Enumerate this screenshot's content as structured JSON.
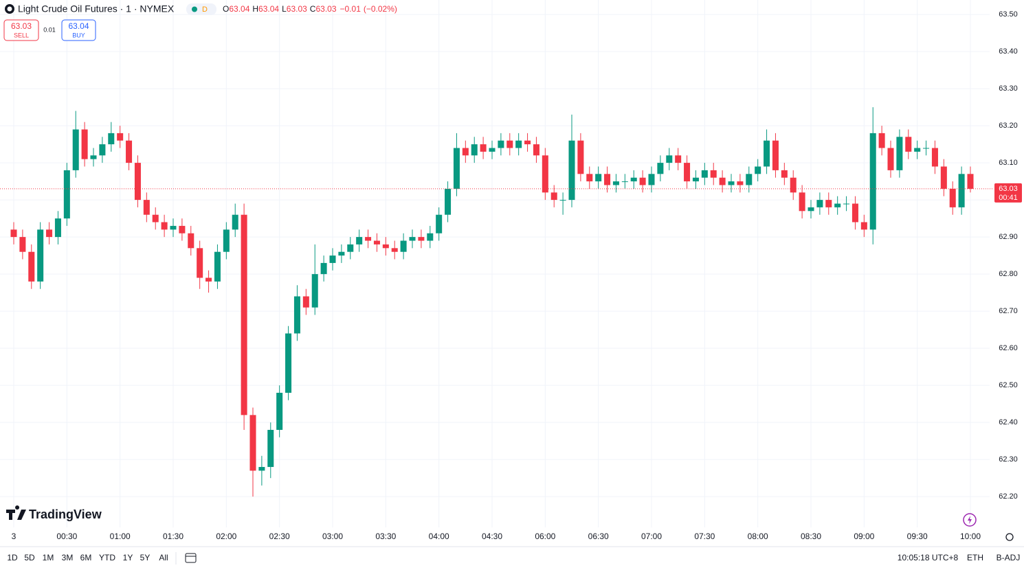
{
  "chart_data": {
    "type": "candlestick",
    "title": "Light Crude Oil Futures · 1 · NYMEX",
    "interval_badge": "D",
    "ohlc_labels": [
      "O",
      "H",
      "L",
      "C"
    ],
    "ohlc_legend": {
      "open": 63.04,
      "high": 63.04,
      "low": 63.03,
      "close": 63.03,
      "change": "−0.01",
      "change_pct": "(−0.02%)"
    },
    "sell": {
      "price": 63.03,
      "label": "SELL"
    },
    "spread": 0.01,
    "buy": {
      "price": 63.04,
      "label": "BUY"
    },
    "last_price": 63.03,
    "countdown": "00:41",
    "logo": "TradingView",
    "up_color": "#089981",
    "down_color": "#f23645",
    "grid": true,
    "categories": [
      "3",
      null,
      null,
      null,
      null,
      null,
      "00:30",
      null,
      null,
      null,
      null,
      null,
      "01:00",
      null,
      null,
      null,
      null,
      null,
      "01:30",
      null,
      null,
      null,
      null,
      null,
      "02:00",
      null,
      null,
      null,
      null,
      null,
      "02:30",
      null,
      null,
      null,
      null,
      null,
      "03:00",
      null,
      null,
      null,
      null,
      null,
      "03:30",
      null,
      null,
      null,
      null,
      null,
      "04:00",
      null,
      null,
      null,
      null,
      null,
      "04:30",
      null,
      null,
      null,
      null,
      null,
      "06:00",
      null,
      null,
      null,
      null,
      null,
      "06:30",
      null,
      null,
      null,
      null,
      null,
      "07:00",
      null,
      null,
      null,
      null,
      null,
      "07:30",
      null,
      null,
      null,
      null,
      null,
      "08:00",
      null,
      null,
      null,
      null,
      null,
      "08:30",
      null,
      null,
      null,
      null,
      null,
      "09:00",
      null,
      null,
      null,
      null,
      null,
      "09:30",
      null,
      null,
      null,
      null,
      null,
      "10:00"
    ],
    "open": [
      62.92,
      62.9,
      62.86,
      62.78,
      62.92,
      62.9,
      62.95,
      63.08,
      63.19,
      63.11,
      63.12,
      63.15,
      63.18,
      63.16,
      63.1,
      63.0,
      62.96,
      62.94,
      62.92,
      62.93,
      62.91,
      62.87,
      62.79,
      62.78,
      62.86,
      62.92,
      62.96,
      62.42,
      62.27,
      62.28,
      62.38,
      62.48,
      62.64,
      62.74,
      62.71,
      62.8,
      62.83,
      62.85,
      62.86,
      62.88,
      62.9,
      62.89,
      62.88,
      62.87,
      62.86,
      62.89,
      62.9,
      62.89,
      62.91,
      62.96,
      63.03,
      63.14,
      63.12,
      63.15,
      63.13,
      63.14,
      63.16,
      63.14,
      63.16,
      63.15,
      63.12,
      63.02,
      63.0,
      63.0,
      63.16,
      63.07,
      63.05,
      63.07,
      63.04,
      63.05,
      63.05,
      63.06,
      63.04,
      63.07,
      63.1,
      63.12,
      63.1,
      63.05,
      63.06,
      63.08,
      63.06,
      63.04,
      63.05,
      63.04,
      63.07,
      63.09,
      63.16,
      63.08,
      63.06,
      63.02,
      62.97,
      62.98,
      63.0,
      62.98,
      62.99,
      62.99,
      62.94,
      62.92,
      63.18,
      63.14,
      63.08,
      63.17,
      63.13,
      63.14,
      63.14,
      63.09,
      63.03,
      62.98,
      63.07
    ],
    "high": [
      62.94,
      62.92,
      62.88,
      62.94,
      62.94,
      62.97,
      63.1,
      63.24,
      63.21,
      63.14,
      63.17,
      63.21,
      63.2,
      63.18,
      63.12,
      63.02,
      62.98,
      62.96,
      62.95,
      62.95,
      62.93,
      62.89,
      62.81,
      62.88,
      62.94,
      62.99,
      62.99,
      62.44,
      62.31,
      62.4,
      62.5,
      62.66,
      62.77,
      62.76,
      62.88,
      62.85,
      62.87,
      62.88,
      62.9,
      62.92,
      62.92,
      62.91,
      62.9,
      62.89,
      62.91,
      62.92,
      62.92,
      62.93,
      62.98,
      63.05,
      63.18,
      63.16,
      63.17,
      63.17,
      63.16,
      63.18,
      63.18,
      63.18,
      63.18,
      63.17,
      63.14,
      63.04,
      63.02,
      63.23,
      63.18,
      63.09,
      63.09,
      63.09,
      63.07,
      63.07,
      63.08,
      63.08,
      63.09,
      63.12,
      63.14,
      63.14,
      63.12,
      63.08,
      63.1,
      63.1,
      63.08,
      63.07,
      63.07,
      63.09,
      63.11,
      63.19,
      63.18,
      63.1,
      63.08,
      63.04,
      63.0,
      63.02,
      63.02,
      63.01,
      63.01,
      63.01,
      62.96,
      63.25,
      63.2,
      63.16,
      63.19,
      63.19,
      63.16,
      63.16,
      63.16,
      63.11,
      63.05,
      63.09,
      63.09
    ],
    "low": [
      62.88,
      62.84,
      62.76,
      62.76,
      62.88,
      62.88,
      62.93,
      63.06,
      63.09,
      63.09,
      63.1,
      63.13,
      63.14,
      63.08,
      62.98,
      62.94,
      62.92,
      62.9,
      62.9,
      62.89,
      62.85,
      62.76,
      62.75,
      62.76,
      62.84,
      62.9,
      62.38,
      62.2,
      62.23,
      62.25,
      62.36,
      62.46,
      62.62,
      62.69,
      62.69,
      62.78,
      62.81,
      62.83,
      62.84,
      62.86,
      62.87,
      62.86,
      62.85,
      62.84,
      62.84,
      62.87,
      62.87,
      62.87,
      62.89,
      62.94,
      63.01,
      63.1,
      63.1,
      63.11,
      63.11,
      63.12,
      63.12,
      63.12,
      63.13,
      63.1,
      63.0,
      62.98,
      62.96,
      62.98,
      63.05,
      63.03,
      63.03,
      63.02,
      63.02,
      63.03,
      63.03,
      63.02,
      63.02,
      63.05,
      63.08,
      63.08,
      63.03,
      63.03,
      63.04,
      63.04,
      63.02,
      63.02,
      63.02,
      63.02,
      63.05,
      63.07,
      63.06,
      63.04,
      63.0,
      62.95,
      62.95,
      62.96,
      62.96,
      62.96,
      62.97,
      62.92,
      62.9,
      62.88,
      63.12,
      63.06,
      63.06,
      63.11,
      63.11,
      63.12,
      63.07,
      63.01,
      62.96,
      62.96,
      63.02
    ],
    "close": [
      62.9,
      62.86,
      62.78,
      62.92,
      62.9,
      62.95,
      63.08,
      63.19,
      63.11,
      63.12,
      63.15,
      63.18,
      63.16,
      63.1,
      63.0,
      62.96,
      62.94,
      62.92,
      62.93,
      62.91,
      62.87,
      62.79,
      62.78,
      62.86,
      62.92,
      62.96,
      62.42,
      62.27,
      62.28,
      62.38,
      62.48,
      62.64,
      62.74,
      62.71,
      62.8,
      62.83,
      62.85,
      62.86,
      62.88,
      62.9,
      62.89,
      62.88,
      62.87,
      62.86,
      62.89,
      62.9,
      62.89,
      62.91,
      62.96,
      63.03,
      63.14,
      63.12,
      63.15,
      63.13,
      63.14,
      63.16,
      63.14,
      63.16,
      63.15,
      63.12,
      63.02,
      63.0,
      63.0,
      63.16,
      63.07,
      63.05,
      63.07,
      63.04,
      63.05,
      63.05,
      63.06,
      63.04,
      63.07,
      63.1,
      63.12,
      63.1,
      63.05,
      63.06,
      63.08,
      63.06,
      63.04,
      63.05,
      63.04,
      63.07,
      63.09,
      63.16,
      63.08,
      63.06,
      63.02,
      62.97,
      62.98,
      63.0,
      62.98,
      62.99,
      62.99,
      62.94,
      62.92,
      63.18,
      63.14,
      63.08,
      63.17,
      63.13,
      63.14,
      63.14,
      63.09,
      63.03,
      62.98,
      63.07,
      63.03
    ],
    "ylim": [
      62.117,
      63.539
    ],
    "yticks": [
      {
        "value": 62.2,
        "label": "62.20"
      },
      {
        "value": 62.3,
        "label": "62.30"
      },
      {
        "value": 62.4,
        "label": "62.40"
      },
      {
        "value": 62.5,
        "label": "62.50"
      },
      {
        "value": 62.6,
        "label": "62.60"
      },
      {
        "value": 62.7,
        "label": "62.70"
      },
      {
        "value": 62.8,
        "label": "62.80"
      },
      {
        "value": 62.9,
        "label": "62.90"
      },
      {
        "value": 63.0,
        "label": "63.00"
      },
      {
        "value": 63.1,
        "label": "63.10"
      },
      {
        "value": 63.2,
        "label": "63.20"
      },
      {
        "value": 63.3,
        "label": "63.30"
      },
      {
        "value": 63.4,
        "label": "63.40"
      },
      {
        "value": 63.5,
        "label": "63.50"
      }
    ],
    "ranges": [
      "1D",
      "5D",
      "1M",
      "3M",
      "6M",
      "YTD",
      "1Y",
      "5Y",
      "All"
    ],
    "clock": "10:05:18 UTC+8",
    "session": "ETH",
    "adjustment": "B-ADJ"
  }
}
